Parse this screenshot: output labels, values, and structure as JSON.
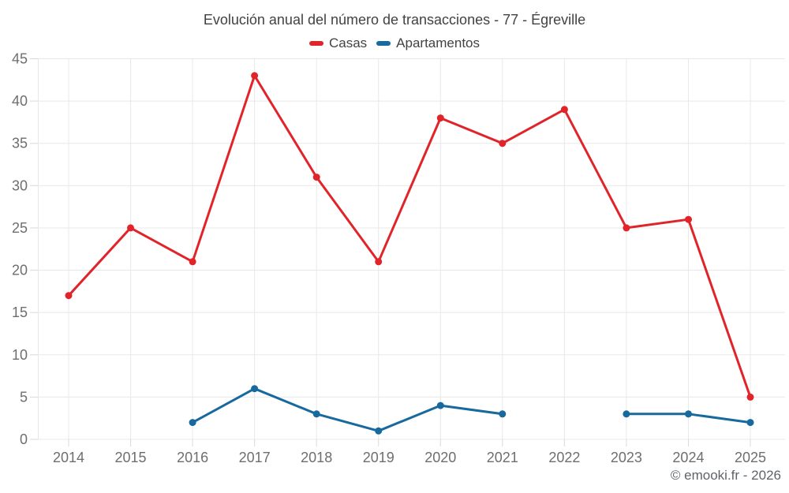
{
  "title": "Evolución anual del número de transacciones - 77 - Égreville",
  "footer": {
    "copyright": "© emooki.fr - 2026"
  },
  "chart_data": {
    "type": "line",
    "title": "Evolución anual del número de transacciones - 77 - Égreville",
    "categories": [
      "2014",
      "2015",
      "2016",
      "2017",
      "2018",
      "2019",
      "2020",
      "2021",
      "2022",
      "2023",
      "2024",
      "2025"
    ],
    "series": [
      {
        "name": "Casas",
        "color": "#e0242a",
        "values": [
          17,
          25,
          21,
          43,
          31,
          21,
          38,
          35,
          39,
          25,
          26,
          5
        ]
      },
      {
        "name": "Apartamentos",
        "color": "#17699e",
        "values": [
          null,
          null,
          2,
          6,
          3,
          1,
          4,
          3,
          null,
          3,
          3,
          2
        ]
      }
    ],
    "xlabel": "",
    "ylabel": "",
    "ylim": [
      0,
      45
    ],
    "y_ticks": [
      0,
      5,
      10,
      15,
      20,
      25,
      30,
      35,
      40,
      45
    ],
    "grid": true,
    "legend_position": "top"
  },
  "colors": {
    "background": "#ffffff",
    "grid": "#e8e8e8",
    "tick": "#d9d9d9",
    "axis_label": "#6e6e6e",
    "title_text": "#424242",
    "copyright_text": "#5f6368"
  }
}
